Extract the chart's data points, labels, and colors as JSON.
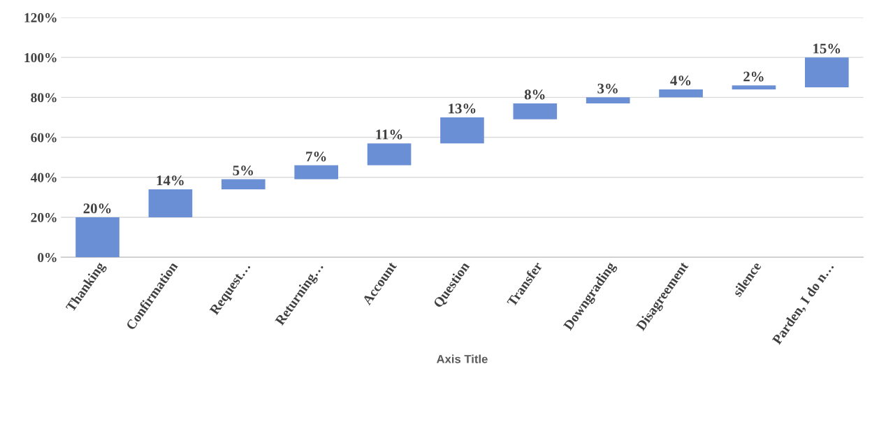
{
  "chart_data": {
    "type": "bar",
    "xlabel": "Axis Title",
    "categories": [
      "Thanking",
      "Confirmation",
      "Request…",
      "Returning…",
      "Account",
      "Question",
      "Transfer",
      "Downgrading",
      "Disagreement",
      "silence",
      "Parden, I do n…"
    ],
    "values": [
      20,
      14,
      5,
      7,
      11,
      13,
      8,
      3,
      4,
      2,
      15
    ],
    "base": [
      0,
      20,
      34,
      39,
      46,
      57,
      69,
      77,
      80,
      84,
      85
    ],
    "value_labels": [
      "20%",
      "14%",
      "5%",
      "7%",
      "11%",
      "13%",
      "8%",
      "3%",
      "4%",
      "2%",
      "15%"
    ],
    "color": "#6a8fd4",
    "ylim": [
      0,
      120
    ],
    "yticks": [
      {
        "value": 0,
        "label": "0%"
      },
      {
        "value": 20,
        "label": "20%"
      },
      {
        "value": 40,
        "label": "40%"
      },
      {
        "value": 60,
        "label": "60%"
      },
      {
        "value": 80,
        "label": "80%"
      },
      {
        "value": 100,
        "label": "100%"
      },
      {
        "value": 120,
        "label": "120%"
      }
    ],
    "grid": "y",
    "legend": false
  }
}
